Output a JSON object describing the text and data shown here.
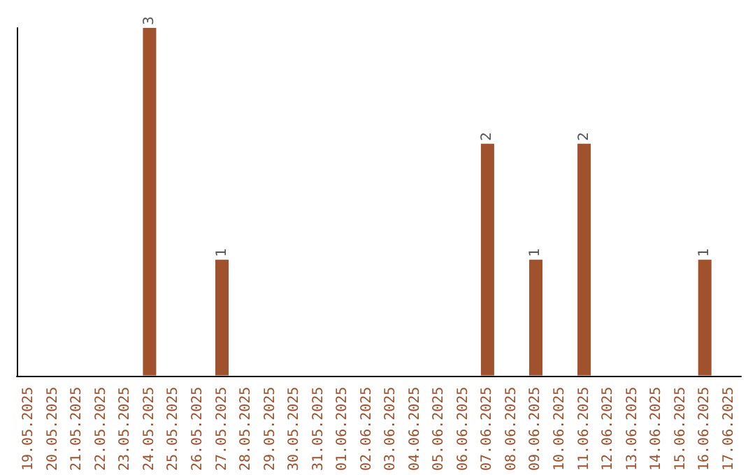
{
  "chart_data": {
    "type": "bar",
    "categories": [
      "19.05.2025",
      "20.05.2025",
      "21.05.2025",
      "22.05.2025",
      "23.05.2025",
      "24.05.2025",
      "25.05.2025",
      "26.05.2025",
      "27.05.2025",
      "28.05.2025",
      "29.05.2025",
      "30.05.2025",
      "31.05.2025",
      "01.06.2025",
      "02.06.2025",
      "03.06.2025",
      "04.06.2025",
      "05.06.2025",
      "06.06.2025",
      "07.06.2025",
      "08.06.2025",
      "09.06.2025",
      "10.06.2025",
      "11.06.2025",
      "12.06.2025",
      "13.06.2025",
      "14.06.2025",
      "15.06.2025",
      "16.06.2025",
      "17.06.2025"
    ],
    "values": [
      0,
      0,
      0,
      0,
      0,
      3,
      0,
      0,
      1,
      0,
      0,
      0,
      0,
      0,
      0,
      0,
      0,
      0,
      0,
      2,
      0,
      1,
      0,
      2,
      0,
      0,
      0,
      0,
      1,
      0
    ],
    "value_labels": [
      null,
      null,
      null,
      null,
      null,
      "3",
      null,
      null,
      "1",
      null,
      null,
      null,
      null,
      null,
      null,
      null,
      null,
      null,
      null,
      "2",
      null,
      "1",
      null,
      "2",
      null,
      null,
      null,
      null,
      "1",
      null
    ],
    "color": "#a0522d",
    "tick_labels": "x"
  }
}
